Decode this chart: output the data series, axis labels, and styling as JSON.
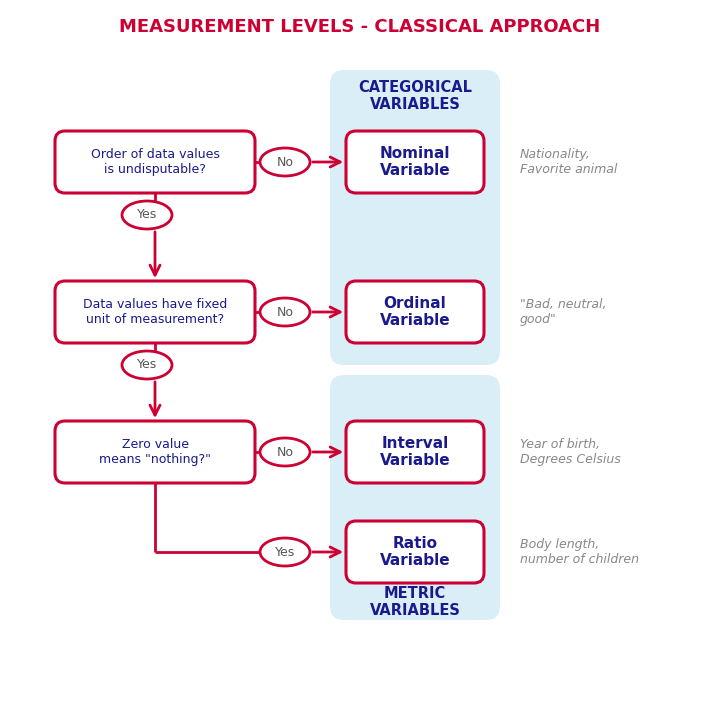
{
  "title": "MEASUREMENT LEVELS - CLASSICAL APPROACH",
  "title_color": "#cc0033",
  "title_fontsize": 13,
  "bg_color": "#ffffff",
  "light_blue_bg": "#daeef7",
  "question_box_color": "#cc0033",
  "question_text_color": "#1a1a8c",
  "result_box_color": "#cc0033",
  "result_text_color": "#1a1a8c",
  "arrow_color": "#cc0033",
  "categorical_label": "CATEGORICAL\nVARIABLES",
  "metric_label": "METRIC\nVARIABLES",
  "questions": [
    "Order of data values\nis undisputable?",
    "Data values have fixed\nunit of measurement?",
    "Zero value\nmeans \"nothing?\""
  ],
  "results": [
    "Nominal\nVariable",
    "Ordinal\nVariable",
    "Interval\nVariable",
    "Ratio\nVariable"
  ],
  "examples": [
    "Nationality,\nFavorite animal",
    "\"Bad, neutral,\ngood\"",
    "Year of birth,\nDegrees Celsius",
    "Body length,\nnumber of children"
  ]
}
